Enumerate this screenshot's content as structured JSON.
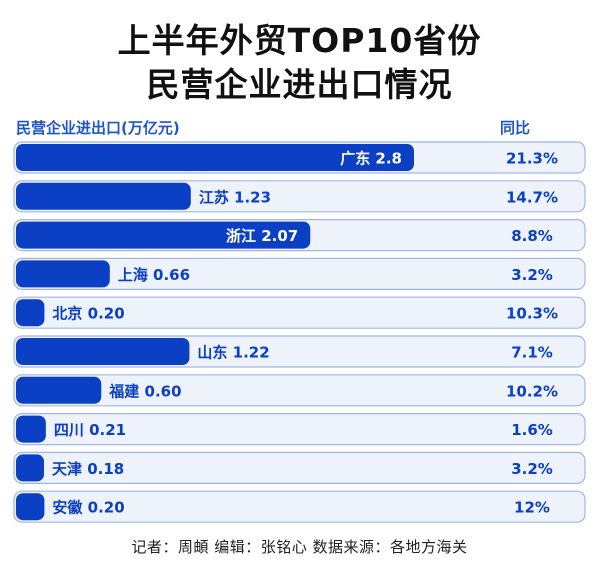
{
  "title_line1": "上半年外贸TOP10省份",
  "title_line2": "民营企业进出口情况",
  "footer": "记者：周頔   编辑：张铭心   数据来源：各地方海关",
  "colors": {
    "bar": "#0b3fc4",
    "track_fill": "#eef3fb",
    "track_border": "#9fb6e6",
    "value_text_on_bar": "#ffffff",
    "value_text": "#0b3fc4",
    "header": "#1f56c8"
  },
  "chart_data": {
    "type": "bar",
    "orientation": "horizontal",
    "column_headers": {
      "value": "民营企业进出口(万亿元)",
      "yoy": "同比"
    },
    "categories": [
      "广东",
      "江苏",
      "浙江",
      "上海",
      "北京",
      "山东",
      "福建",
      "四川",
      "天津",
      "安徽"
    ],
    "series": [
      {
        "values": [
          2.8,
          1.23,
          2.07,
          0.66,
          0.2,
          1.22,
          0.6,
          0.21,
          0.18,
          0.2
        ]
      }
    ],
    "value_labels": [
      "2.8",
      "1.23",
      "2.07",
      "0.66",
      "0.20",
      "1.22",
      "0.60",
      "0.21",
      "0.18",
      "0.20"
    ],
    "yoy_labels": [
      "21.3%",
      "14.7%",
      "8.8%",
      "3.2%",
      "10.3%",
      "7.1%",
      "10.2%",
      "1.6%",
      "3.2%",
      "12%"
    ],
    "xlim": [
      0,
      2.8
    ],
    "grid": false,
    "legend": "none"
  }
}
